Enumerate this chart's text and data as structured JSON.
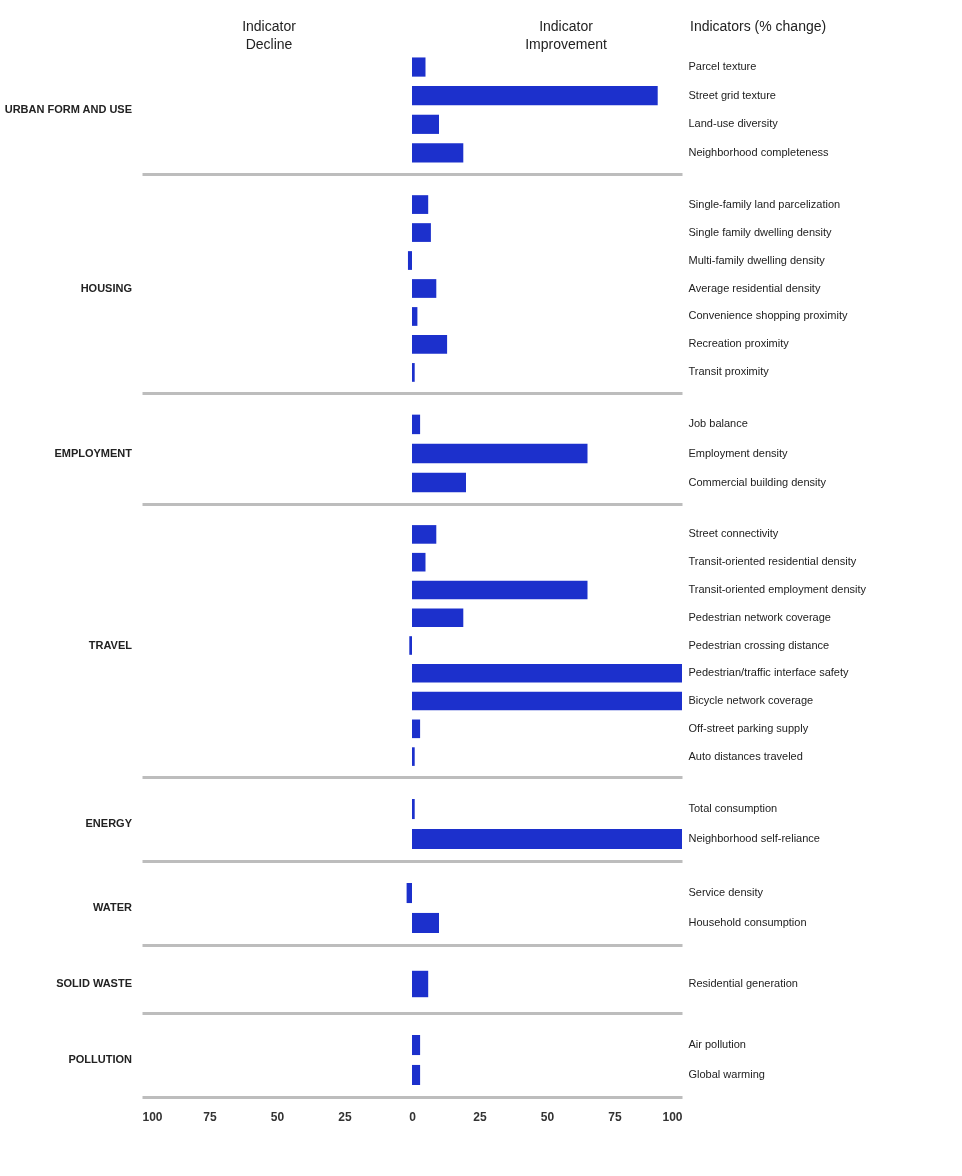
{
  "chart_data": [
    {
      "type": "bar",
      "orientation": "horizontal",
      "title": "URBAN FORM AND USE",
      "annotations": [
        "Indicator Decline",
        "Indicator Improvement",
        "Indicators (% change)"
      ],
      "categories": [
        "Parcel texture",
        "Street grid texture",
        "Land-use diversity",
        "Neighborhood completeness"
      ],
      "values": [
        5,
        91,
        10,
        19
      ],
      "color": "#1c30cc",
      "xlim": [
        -100,
        100
      ],
      "tick_labels": "y"
    },
    {
      "type": "bar",
      "orientation": "horizontal",
      "title": "HOUSING",
      "categories": [
        "Single-family land parcelization",
        "Single family dwelling density",
        "Multi-family dwelling density",
        "Average residential density",
        "Convenience shopping proximity",
        "Recreation proximity",
        "Transit proximity"
      ],
      "values": [
        6,
        7,
        -1.5,
        9,
        2,
        13,
        1
      ],
      "color": "#1c30cc",
      "xlim": [
        -100,
        100
      ],
      "tick_labels": "y"
    },
    {
      "type": "bar",
      "orientation": "horizontal",
      "title": "EMPLOYMENT",
      "categories": [
        "Job balance",
        "Employment density",
        "Commercial building density"
      ],
      "values": [
        3,
        65,
        20
      ],
      "color": "#1c30cc",
      "xlim": [
        -100,
        100
      ],
      "tick_labels": "y"
    },
    {
      "type": "bar",
      "orientation": "horizontal",
      "title": "TRAVEL",
      "categories": [
        "Street connectivity",
        "Transit-oriented residential density",
        "Transit-oriented employment density",
        "Pedestrian network coverage",
        "Pedestrian crossing distance",
        "Pedestrian/traffic interface safety",
        "Bicycle network coverage",
        "Off-street parking supply",
        "Auto distances traveled"
      ],
      "values": [
        9,
        5,
        65,
        19,
        -1,
        100,
        100,
        3,
        1
      ],
      "color": "#1c30cc",
      "xlim": [
        -100,
        100
      ],
      "tick_labels": "y"
    },
    {
      "type": "bar",
      "orientation": "horizontal",
      "title": "ENERGY",
      "categories": [
        "Total consumption",
        "Neighborhood self-reliance"
      ],
      "values": [
        1,
        100
      ],
      "color": "#1c30cc",
      "xlim": [
        -100,
        100
      ],
      "tick_labels": "y"
    },
    {
      "type": "bar",
      "orientation": "horizontal",
      "title": "WATER",
      "categories": [
        "Service density",
        "Household consumption"
      ],
      "values": [
        -2,
        10
      ],
      "color": "#1c30cc",
      "xlim": [
        -100,
        100
      ],
      "tick_labels": "y"
    },
    {
      "type": "bar",
      "orientation": "horizontal",
      "title": "SOLID WASTE",
      "categories": [
        "Residential generation"
      ],
      "values": [
        6
      ],
      "color": "#1c30cc",
      "xlim": [
        -100,
        100
      ],
      "tick_labels": "y"
    },
    {
      "type": "bar",
      "orientation": "horizontal",
      "title": "POLLUTION",
      "categories": [
        "Air pollution",
        "Global warming"
      ],
      "values": [
        3,
        3
      ],
      "color": "#1c30cc",
      "xlim": [
        -100,
        100
      ],
      "xticks": [
        {
          "value": -100,
          "label": "100"
        },
        {
          "value": -75,
          "label": "75"
        },
        {
          "value": -50,
          "label": "50"
        },
        {
          "value": -25,
          "label": "25"
        },
        0,
        25,
        50,
        75,
        100
      ]
    }
  ]
}
